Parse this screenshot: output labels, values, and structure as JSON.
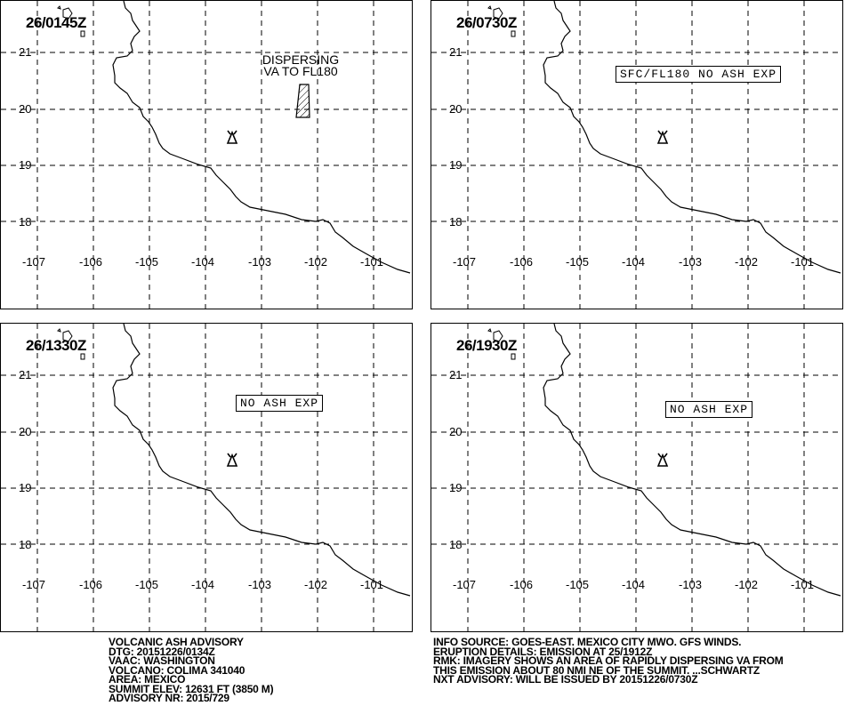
{
  "panels": [
    {
      "time": "26/0145Z",
      "label_lines": [
        "DISPERSING",
        "VA TO FL180"
      ],
      "boxed_label": ""
    },
    {
      "time": "26/0730Z",
      "label_lines": [],
      "boxed_label": "SFC/FL180 NO ASH EXP"
    },
    {
      "time": "26/1330Z",
      "label_lines": [],
      "boxed_label": "NO ASH EXP"
    },
    {
      "time": "26/1930Z",
      "label_lines": [],
      "boxed_label": "NO ASH EXP"
    }
  ],
  "map": {
    "lat_ticks": [
      "21",
      "20",
      "19",
      "18"
    ],
    "lon_ticks": [
      "-107",
      "-106",
      "-105",
      "-104",
      "-103",
      "-102",
      "-101"
    ],
    "volcano_icon": "volcano-triangle-icon"
  },
  "advisory_left": [
    "VOLCANIC ASH ADVISORY",
    "DTG: 20151226/0134Z",
    "VAAC: WASHINGTON",
    "VOLCANO: COLIMA 341040",
    "AREA: MEXICO",
    "SUMMIT ELEV: 12631 FT (3850 M)",
    "ADVISORY NR: 2015/729"
  ],
  "advisory_right": [
    "INFO SOURCE: GOES-EAST. MEXICO CITY MWO. GFS WINDS.",
    "ERUPTION DETAILS: EMISSION AT 25/1912Z",
    "RMK: IMAGERY SHOWS AN AREA OF RAPIDLY DISPERSING VA FROM",
    "THIS EMISSION ABOUT 80 NMI NE OF THE SUMMIT. ...SCHWARTZ",
    "NXT ADVISORY: WILL BE ISSUED BY 20151226/0730Z"
  ]
}
